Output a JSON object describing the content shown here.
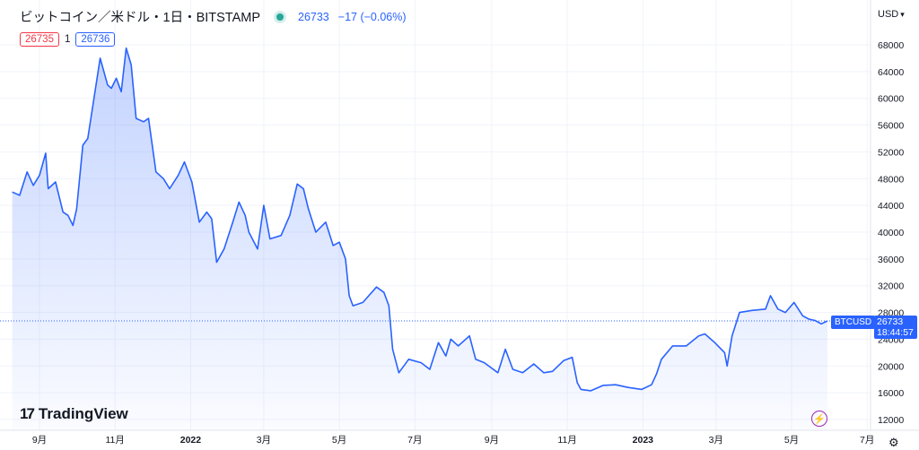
{
  "header": {
    "symbol": "ビットコイン／米ドル・1日・BITSTAMP",
    "last_price": "26733",
    "change": "−17 (−0.06%)",
    "status_color": "#26a69a"
  },
  "quote": {
    "bid": "26735",
    "spread": "1",
    "ask": "26736"
  },
  "currency": "USD",
  "price_tag": {
    "symbol": "BTCUSD",
    "price": "26733",
    "countdown": "18:44:57"
  },
  "logo": {
    "mark": "17",
    "text": "TradingView"
  },
  "chart_data": {
    "type": "area",
    "ylim": [
      10000,
      70000
    ],
    "y_ticks": [
      12000,
      16000,
      20000,
      24000,
      28000,
      32000,
      36000,
      40000,
      44000,
      48000,
      52000,
      56000,
      60000,
      64000,
      68000
    ],
    "x_ticks": [
      {
        "label": "9月",
        "date": "2021-09-01",
        "bold": false
      },
      {
        "label": "11月",
        "date": "2021-11-01",
        "bold": false
      },
      {
        "label": "2022",
        "date": "2022-01-01",
        "bold": true
      },
      {
        "label": "3月",
        "date": "2022-03-01",
        "bold": false
      },
      {
        "label": "5月",
        "date": "2022-05-01",
        "bold": false
      },
      {
        "label": "7月",
        "date": "2022-07-01",
        "bold": false
      },
      {
        "label": "9月",
        "date": "2022-09-01",
        "bold": false
      },
      {
        "label": "11月",
        "date": "2022-11-01",
        "bold": false
      },
      {
        "label": "2023",
        "date": "2023-01-01",
        "bold": true
      },
      {
        "label": "3月",
        "date": "2023-03-01",
        "bold": false
      },
      {
        "label": "5月",
        "date": "2023-05-01",
        "bold": false
      },
      {
        "label": "7月",
        "date": "2023-07-01",
        "bold": false
      }
    ],
    "series": [
      {
        "values": [
          [
            "2021-08-10",
            46000
          ],
          [
            "2021-08-16",
            45500
          ],
          [
            "2021-08-22",
            49000
          ],
          [
            "2021-08-27",
            47000
          ],
          [
            "2021-09-01",
            48500
          ],
          [
            "2021-09-06",
            51800
          ],
          [
            "2021-09-08",
            46500
          ],
          [
            "2021-09-14",
            47500
          ],
          [
            "2021-09-20",
            43000
          ],
          [
            "2021-09-24",
            42500
          ],
          [
            "2021-09-28",
            41000
          ],
          [
            "2021-10-01",
            43500
          ],
          [
            "2021-10-06",
            53000
          ],
          [
            "2021-10-10",
            54000
          ],
          [
            "2021-10-15",
            60000
          ],
          [
            "2021-10-20",
            66000
          ],
          [
            "2021-10-26",
            62000
          ],
          [
            "2021-10-29",
            61500
          ],
          [
            "2021-11-02",
            63000
          ],
          [
            "2021-11-06",
            61000
          ],
          [
            "2021-11-10",
            67500
          ],
          [
            "2021-11-14",
            65000
          ],
          [
            "2021-11-18",
            57000
          ],
          [
            "2021-11-24",
            56500
          ],
          [
            "2021-11-28",
            57000
          ],
          [
            "2021-12-04",
            49000
          ],
          [
            "2021-12-10",
            48000
          ],
          [
            "2021-12-15",
            46500
          ],
          [
            "2021-12-22",
            48500
          ],
          [
            "2021-12-27",
            50500
          ],
          [
            "2022-01-02",
            47500
          ],
          [
            "2022-01-08",
            41500
          ],
          [
            "2022-01-14",
            43000
          ],
          [
            "2022-01-18",
            42000
          ],
          [
            "2022-01-22",
            35500
          ],
          [
            "2022-01-28",
            37500
          ],
          [
            "2022-02-04",
            41500
          ],
          [
            "2022-02-09",
            44500
          ],
          [
            "2022-02-14",
            42500
          ],
          [
            "2022-02-17",
            40000
          ],
          [
            "2022-02-24",
            37500
          ],
          [
            "2022-03-01",
            44000
          ],
          [
            "2022-03-06",
            39000
          ],
          [
            "2022-03-15",
            39500
          ],
          [
            "2022-03-22",
            42500
          ],
          [
            "2022-03-28",
            47200
          ],
          [
            "2022-04-02",
            46500
          ],
          [
            "2022-04-06",
            43500
          ],
          [
            "2022-04-12",
            40000
          ],
          [
            "2022-04-20",
            41500
          ],
          [
            "2022-04-26",
            38000
          ],
          [
            "2022-05-01",
            38500
          ],
          [
            "2022-05-06",
            36000
          ],
          [
            "2022-05-09",
            30500
          ],
          [
            "2022-05-12",
            29000
          ],
          [
            "2022-05-20",
            29500
          ],
          [
            "2022-05-31",
            31800
          ],
          [
            "2022-06-06",
            31000
          ],
          [
            "2022-06-10",
            29000
          ],
          [
            "2022-06-13",
            22500
          ],
          [
            "2022-06-18",
            19000
          ],
          [
            "2022-06-26",
            21000
          ],
          [
            "2022-07-06",
            20500
          ],
          [
            "2022-07-13",
            19500
          ],
          [
            "2022-07-20",
            23500
          ],
          [
            "2022-07-26",
            21500
          ],
          [
            "2022-07-30",
            24000
          ],
          [
            "2022-08-05",
            23000
          ],
          [
            "2022-08-14",
            24500
          ],
          [
            "2022-08-19",
            21000
          ],
          [
            "2022-08-26",
            20500
          ],
          [
            "2022-09-06",
            19000
          ],
          [
            "2022-09-12",
            22500
          ],
          [
            "2022-09-18",
            19500
          ],
          [
            "2022-09-26",
            19000
          ],
          [
            "2022-10-05",
            20300
          ],
          [
            "2022-10-13",
            19000
          ],
          [
            "2022-10-20",
            19200
          ],
          [
            "2022-10-29",
            20800
          ],
          [
            "2022-11-05",
            21300
          ],
          [
            "2022-11-09",
            17500
          ],
          [
            "2022-11-12",
            16500
          ],
          [
            "2022-11-20",
            16300
          ],
          [
            "2022-11-30",
            17100
          ],
          [
            "2022-12-10",
            17200
          ],
          [
            "2022-12-20",
            16800
          ],
          [
            "2022-12-31",
            16500
          ],
          [
            "2023-01-08",
            17200
          ],
          [
            "2023-01-12",
            18800
          ],
          [
            "2023-01-16",
            21000
          ],
          [
            "2023-01-25",
            23000
          ],
          [
            "2023-02-05",
            23000
          ],
          [
            "2023-02-15",
            24500
          ],
          [
            "2023-02-20",
            24800
          ],
          [
            "2023-02-28",
            23500
          ],
          [
            "2023-03-08",
            22000
          ],
          [
            "2023-03-10",
            20000
          ],
          [
            "2023-03-14",
            24500
          ],
          [
            "2023-03-20",
            28000
          ],
          [
            "2023-03-30",
            28300
          ],
          [
            "2023-04-10",
            28500
          ],
          [
            "2023-04-14",
            30500
          ],
          [
            "2023-04-20",
            28500
          ],
          [
            "2023-04-26",
            28000
          ],
          [
            "2023-05-03",
            29500
          ],
          [
            "2023-05-10",
            27500
          ],
          [
            "2023-05-15",
            27000
          ],
          [
            "2023-05-20",
            26800
          ],
          [
            "2023-05-25",
            26300
          ],
          [
            "2023-05-30",
            26733
          ]
        ]
      }
    ],
    "line_color": "#2962ff",
    "grid": true
  }
}
